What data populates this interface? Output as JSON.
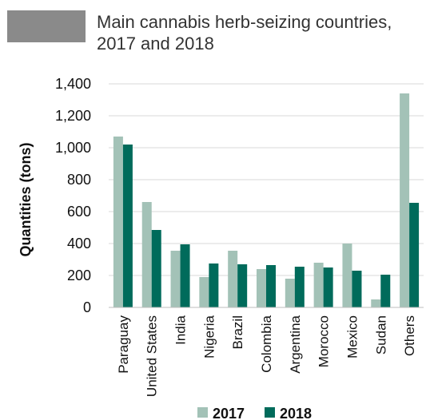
{
  "header": {
    "title_line1": "Main cannabis herb-seizing countries,",
    "title_line2": "2017 and 2018"
  },
  "chart_data": {
    "type": "bar",
    "title": "Main cannabis herb-seizing countries, 2017 and 2018",
    "ylabel": "Quantities (tons)",
    "xlabel": "",
    "ylim": [
      0,
      1400
    ],
    "yticks": [
      "0",
      "200",
      "400",
      "600",
      "800",
      "1,000",
      "1,200",
      "1,400"
    ],
    "ytick_values": [
      0,
      200,
      400,
      600,
      800,
      1000,
      1200,
      1400
    ],
    "grid": true,
    "legend_position": "bottom",
    "categories": [
      "Paraguay",
      "United States",
      "India",
      "Nigeria",
      "Brazil",
      "Colombia",
      "Argentina",
      "Morocco",
      "Mexico",
      "Sudan",
      "Others"
    ],
    "series": [
      {
        "name": "2017",
        "color": "#a3c2b7",
        "values": [
          1070,
          660,
          355,
          190,
          355,
          240,
          180,
          280,
          400,
          50,
          1340
        ]
      },
      {
        "name": "2018",
        "color": "#006b5b",
        "values": [
          1020,
          485,
          395,
          275,
          270,
          265,
          255,
          250,
          230,
          205,
          655
        ]
      }
    ]
  }
}
